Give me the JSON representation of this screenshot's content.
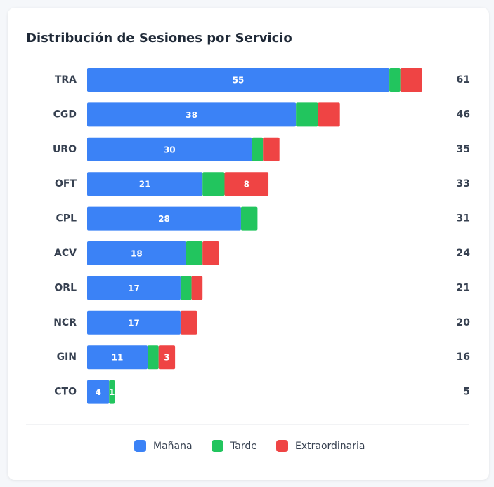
{
  "chart_data": {
    "type": "stacked-bar-horizontal",
    "title": "Distribución de Sesiones por Servicio",
    "categories": [
      "TRA",
      "CGD",
      "URO",
      "OFT",
      "CPL",
      "ACV",
      "ORL",
      "NCR",
      "GIN",
      "CTO"
    ],
    "series": [
      {
        "name": "Mañana",
        "color": "#3b82f6",
        "values": [
          55,
          38,
          30,
          21,
          28,
          18,
          17,
          17,
          11,
          4
        ],
        "value_labels": [
          "55",
          "38",
          "30",
          "21",
          "28",
          "18",
          "17",
          "17",
          "11",
          "4"
        ]
      },
      {
        "name": "Tarde",
        "color": "#22c55e",
        "values": [
          2,
          4,
          2,
          4,
          3,
          3,
          2,
          0,
          2,
          1
        ],
        "value_labels": [
          null,
          null,
          null,
          null,
          null,
          null,
          null,
          null,
          null,
          "1"
        ]
      },
      {
        "name": "Extraordinaria",
        "color": "#ef4444",
        "values": [
          4,
          4,
          3,
          8,
          0,
          3,
          2,
          3,
          3,
          0
        ],
        "value_labels": [
          null,
          null,
          null,
          "8",
          null,
          null,
          null,
          null,
          "3",
          null
        ]
      }
    ],
    "totals": [
      61,
      46,
      35,
      33,
      31,
      24,
      21,
      20,
      16,
      5
    ],
    "xlim": [
      0,
      61
    ]
  }
}
